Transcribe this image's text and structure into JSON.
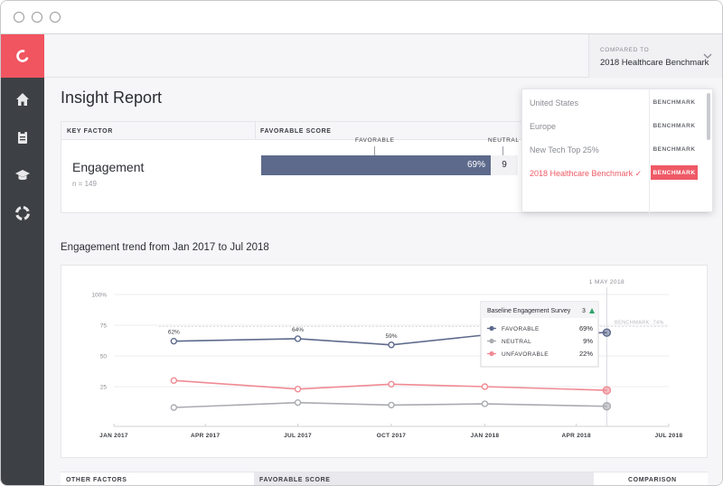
{
  "report": {
    "title": "Insight Report"
  },
  "compared_to": {
    "label": "COMPARED TO",
    "value": "2018 Healthcare Benchmark"
  },
  "key_factor_table": {
    "col_key_factor": "KEY FACTOR",
    "col_favorable_score": "FAVORABLE SCORE",
    "factor_name": "Engagement",
    "factor_n": "n = 149",
    "bar_label_favorable": "FAVORABLE",
    "bar_label_neutral": "NEUTRAL",
    "favorable_pct": 69,
    "favorable_text": "69%",
    "neutral_value": 9,
    "neutral_text": "9"
  },
  "benchmark_dropdown": {
    "items": [
      {
        "name": "United States",
        "badge": "BENCHMARK",
        "selected": false
      },
      {
        "name": "Europe",
        "badge": "BENCHMARK",
        "selected": false
      },
      {
        "name": "New Tech Top 25%",
        "badge": "BENCHMARK",
        "selected": false
      },
      {
        "name": "2018 Healthcare Benchmark ✓",
        "badge": "BENCHMARK",
        "selected": true
      }
    ]
  },
  "trend": {
    "title": "Engagement trend from Jan 2017 to Jul 2018",
    "marker_label": "1 MAY 2018",
    "benchmark_label": "BENCHMARK: 74%",
    "tooltip": {
      "title": "Baseline Engagement Survey",
      "count": "3",
      "rows": [
        {
          "label": "FAVORABLE",
          "value": "69%",
          "color": "#5d6a8c"
        },
        {
          "label": "NEUTRAL",
          "value": "9%",
          "color": "#a9abb0"
        },
        {
          "label": "UNFAVORABLE",
          "value": "22%",
          "color": "#f08a93"
        }
      ]
    }
  },
  "bottom_table": {
    "col_other": "OTHER FACTORS",
    "col_favorable": "FAVORABLE SCORE",
    "col_comparison": "COMPARISON"
  },
  "chart_data": {
    "type": "line",
    "title": "Engagement trend from Jan 2017 to Jul 2018",
    "x_ticks": [
      "JAN 2017",
      "APR 2017",
      "JUL 2017",
      "OCT 2017",
      "JAN 2018",
      "APR 2018",
      "JUL 2018"
    ],
    "y_ticks": [
      "100%",
      "75",
      "50",
      "25"
    ],
    "ylim": [
      0,
      100
    ],
    "x_dates": [
      "2017-03-01",
      "2017-07-01",
      "2017-10-01",
      "2018-01-01",
      "2018-05-01"
    ],
    "benchmark": 74,
    "series": [
      {
        "name": "FAVORABLE",
        "color": "#5d6a8c",
        "values": [
          62,
          64,
          59,
          67,
          69
        ],
        "labels": [
          "62%",
          "64%",
          "59%",
          "",
          ""
        ]
      },
      {
        "name": "NEUTRAL",
        "color": "#a9abb0",
        "values": [
          8,
          12,
          10,
          11,
          9
        ],
        "labels": [
          "",
          "",
          "",
          "",
          ""
        ]
      },
      {
        "name": "UNFAVORABLE",
        "color": "#f08a93",
        "values": [
          30,
          23,
          27,
          25,
          22
        ],
        "labels": [
          "",
          "",
          "",
          "",
          ""
        ]
      }
    ],
    "grid": true,
    "legend": "tooltip"
  },
  "icons": {
    "logo": "brand-logo-icon",
    "nav": [
      "home-icon",
      "clipboard-icon",
      "graduation-cap-icon",
      "lifebuoy-icon"
    ],
    "chevron": "chevron-down-icon"
  }
}
